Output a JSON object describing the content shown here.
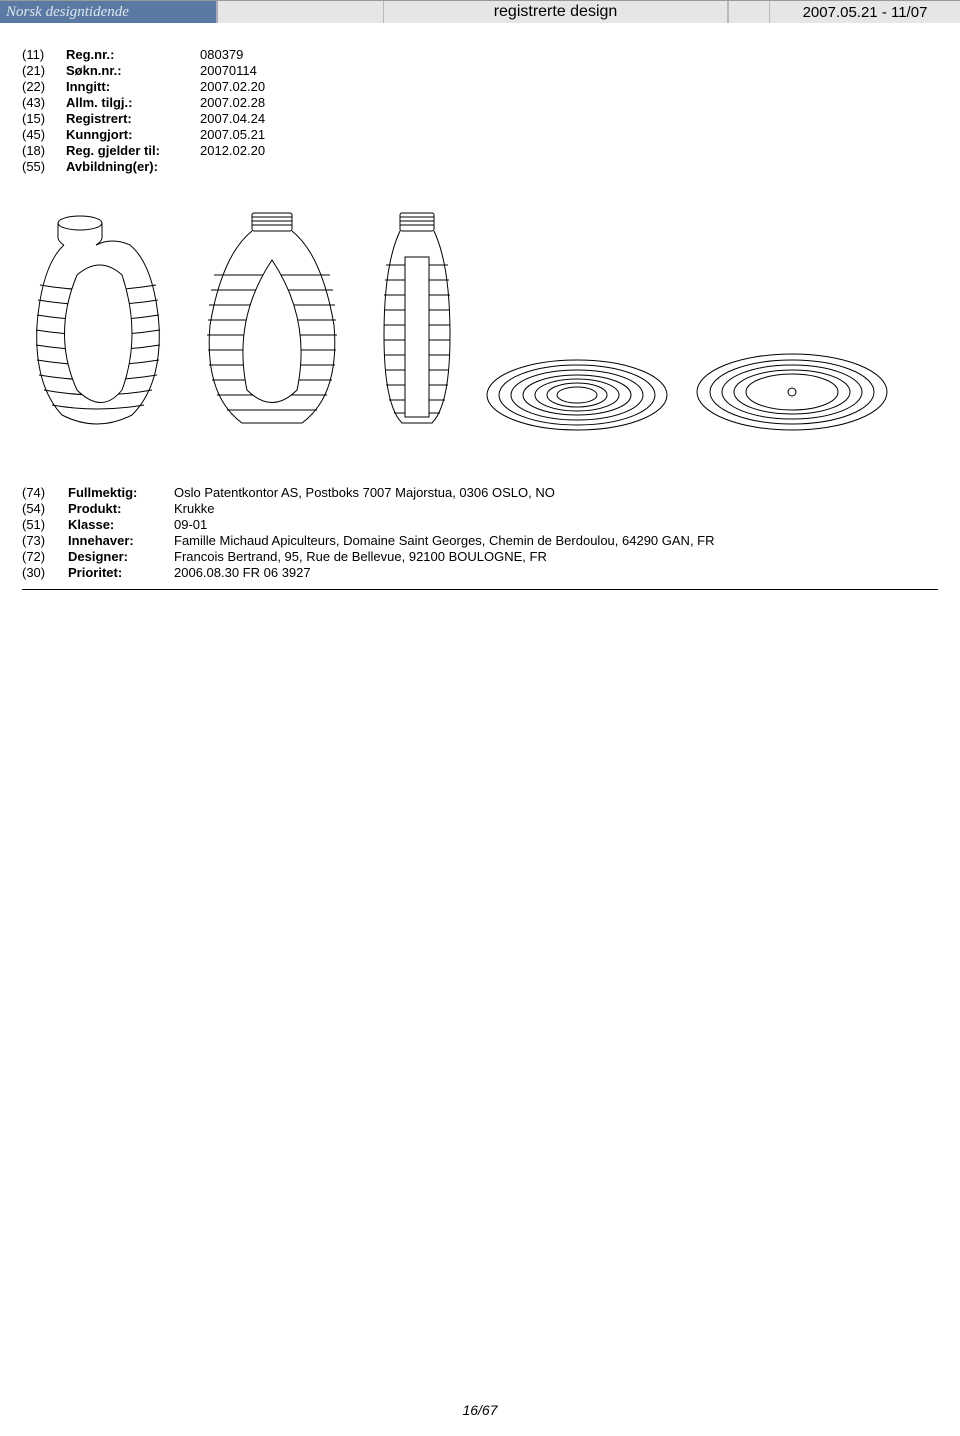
{
  "header": {
    "brand": "Norsk designtidende",
    "center": "registrerte design",
    "right": "2007.05.21 - 11/07"
  },
  "block1": {
    "rows": [
      {
        "code": "(11)",
        "label": "Reg.nr.:",
        "value": "080379"
      },
      {
        "code": "(21)",
        "label": "Søkn.nr.:",
        "value": "20070114"
      },
      {
        "code": "(22)",
        "label": "Inngitt:",
        "value": "2007.02.20"
      },
      {
        "code": "(43)",
        "label": "Allm. tilgj.:",
        "value": "2007.02.28"
      },
      {
        "code": "(15)",
        "label": "Registrert:",
        "value": "2007.04.24"
      },
      {
        "code": "(45)",
        "label": "Kunngjort:",
        "value": "2007.05.21"
      },
      {
        "code": "(18)",
        "label": "Reg. gjelder til:",
        "value": "2012.02.20"
      },
      {
        "code": "(55)",
        "label": "Avbildning(er):",
        "value": ""
      }
    ]
  },
  "block2": {
    "rows": [
      {
        "code": "(74)",
        "label": "Fullmektig:",
        "value": "Oslo Patentkontor AS, Postboks 7007 Majorstua, 0306 OSLO, NO"
      },
      {
        "code": "(54)",
        "label": "Produkt:",
        "value": "Krukke"
      },
      {
        "code": "(51)",
        "label": "Klasse:",
        "value": "09-01"
      },
      {
        "code": "(73)",
        "label": "Innehaver:",
        "value": "Famille Michaud Apiculteurs, Domaine Saint Georges, Chemin de Berdoulou, 64290 GAN, FR"
      },
      {
        "code": "(72)",
        "label": "Designer:",
        "value": "Francois Bertrand, 95, Rue de Bellevue, 92100 BOULOGNE, FR"
      },
      {
        "code": "(30)",
        "label": "Prioritet:",
        "value": "2006.08.30 FR 06 3927"
      }
    ]
  },
  "footer": "16/67"
}
